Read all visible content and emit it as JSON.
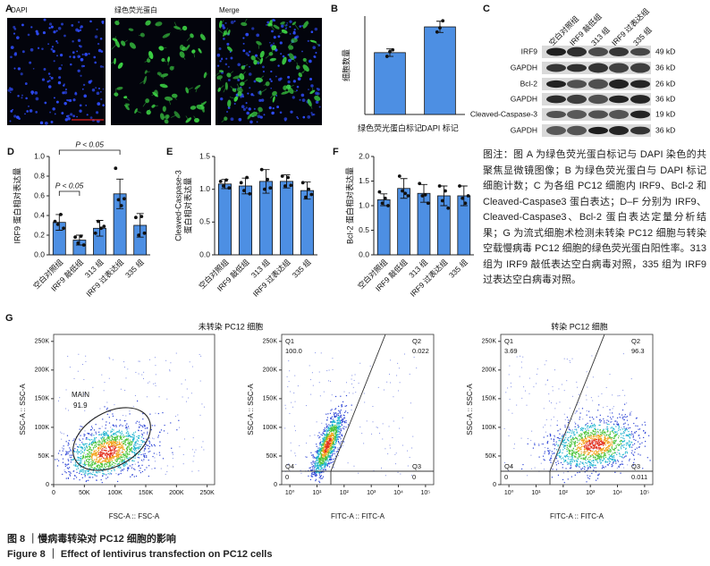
{
  "images": {
    "label": "A",
    "panels": [
      "DAPI",
      "绿色荧光蛋白",
      "Merge"
    ]
  },
  "blot": {
    "label": "C",
    "groups": [
      "空白对照组",
      "IRF9 敲低组",
      "313 组",
      "IRF9 过表达组",
      "335 组"
    ],
    "rows": [
      {
        "name": "IRF9",
        "size": "49 kD"
      },
      {
        "name": "GAPDH",
        "size": "36 kD"
      },
      {
        "name": "Bcl-2",
        "size": "26 kD"
      },
      {
        "name": "GAPDH",
        "size": "36 kD"
      },
      {
        "name": "Cleaved-Caspase-3",
        "size": "19 kD"
      },
      {
        "name": "GAPDH",
        "size": "36 kD"
      }
    ]
  },
  "chart_data": [
    {
      "type": "bar",
      "label": "B",
      "ylabel": [
        "细胞数量"
      ],
      "categories": [
        "绿色荧光蛋白标记",
        "DAPI 标记"
      ],
      "values": [
        132,
        187
      ],
      "errors": [
        8,
        12
      ],
      "points": [
        [
          124,
          134,
          138
        ],
        [
          176,
          185,
          200
        ]
      ],
      "color": "#4d8fe3",
      "ylim": [
        0,
        210
      ]
    },
    {
      "type": "bar",
      "label": "D",
      "ylabel": [
        "IRF9 蛋白相对表达量"
      ],
      "categories": [
        "空白对照组",
        "IRF9 敲低组",
        "313 组",
        "IRF9 过表达组",
        "335 组"
      ],
      "values": [
        0.33,
        0.15,
        0.27,
        0.62,
        0.3
      ],
      "errors": [
        0.08,
        0.05,
        0.08,
        0.15,
        0.12
      ],
      "points": [
        [
          0.34,
          0.31,
          0.41,
          0.27
        ],
        [
          0.18,
          0.12,
          0.19,
          0.1
        ],
        [
          0.22,
          0.34,
          0.27,
          0.29
        ],
        [
          0.88,
          0.56,
          0.5,
          0.57
        ],
        [
          0.38,
          0.2,
          0.39,
          0.22
        ]
      ],
      "color": "#4d8fe3",
      "ylim": [
        0,
        1.0
      ],
      "yticks": [
        {
          "value": 0,
          "label": "0.0"
        },
        {
          "value": 0.2,
          "label": "0.2"
        },
        {
          "value": 0.4,
          "label": "0.4"
        },
        {
          "value": 0.6,
          "label": "0.6"
        },
        {
          "value": 0.8,
          "label": "0.8"
        },
        {
          "value": 1.0,
          "label": "1.0"
        }
      ],
      "annotations": [
        "P < 0.05",
        "P < 0.05"
      ]
    },
    {
      "type": "bar",
      "label": "E",
      "ylabel": [
        "Cleaved-Caspase-3",
        "蛋白相对表达量"
      ],
      "categories": [
        "空白对照组",
        "IRF9 敲低组",
        "313 组",
        "IRF9 过表达组",
        "335 组"
      ],
      "values": [
        1.08,
        1.05,
        1.12,
        1.12,
        0.98
      ],
      "errors": [
        0.07,
        0.12,
        0.18,
        0.1,
        0.13
      ],
      "points": [
        [
          1.12,
          1.05,
          1.14,
          1.02
        ],
        [
          1.1,
          0.98,
          1.18,
          0.93
        ],
        [
          1.3,
          1.0,
          1.15,
          1.02
        ],
        [
          1.2,
          1.05,
          1.18,
          1.06
        ],
        [
          1.1,
          0.88,
          1.0,
          0.92
        ]
      ],
      "color": "#4d8fe3",
      "ylim": [
        0,
        1.5
      ],
      "yticks": [
        {
          "value": 0,
          "label": "0.0"
        },
        {
          "value": 0.5,
          "label": "0.5"
        },
        {
          "value": 1.0,
          "label": "1.0"
        },
        {
          "value": 1.5,
          "label": "1.5"
        }
      ]
    },
    {
      "type": "bar",
      "label": "F",
      "ylabel": [
        "Bcl-2 蛋白相对表达量"
      ],
      "categories": [
        "空白对照组",
        "IRF9 敲低组",
        "313 组",
        "IRF9 过表达组",
        "335 组"
      ],
      "values": [
        1.12,
        1.35,
        1.25,
        1.2,
        1.2
      ],
      "errors": [
        0.12,
        0.2,
        0.18,
        0.2,
        0.2
      ],
      "points": [
        [
          1.28,
          1.05,
          1.15,
          1.0
        ],
        [
          1.6,
          1.3,
          1.25,
          1.2
        ],
        [
          1.45,
          1.2,
          1.22,
          1.05
        ],
        [
          1.4,
          1.1,
          1.3,
          0.95
        ],
        [
          1.4,
          1.15,
          1.05,
          1.2
        ]
      ],
      "color": "#4d8fe3",
      "ylim": [
        0,
        2.0
      ],
      "yticks": [
        {
          "value": 0,
          "label": "0.0"
        },
        {
          "value": 0.5,
          "label": "0.5"
        },
        {
          "value": 1.0,
          "label": "1.0"
        },
        {
          "value": 1.5,
          "label": "1.5"
        },
        {
          "value": 2.0,
          "label": "2.0"
        }
      ]
    }
  ],
  "flow": {
    "label": "G",
    "titles": [
      "未转染 PC12 细胞",
      "转染 PC12 细胞"
    ],
    "plots": [
      {
        "xlabel": "FSC-A :: FSC-A",
        "ylabel": "SSC-A :: SSC-A",
        "log_x": false,
        "xlim": [
          0,
          262144
        ],
        "ylim": [
          0,
          262144
        ],
        "xticks": [
          0,
          {
            "value": 50000,
            "label": "50K"
          },
          {
            "value": 100000,
            "label": "100K"
          },
          {
            "value": 150000,
            "label": "150K"
          },
          {
            "value": 200000,
            "label": "200K"
          },
          {
            "value": 250000,
            "label": "250K"
          }
        ],
        "yticks": [
          0,
          {
            "value": 50000,
            "label": "50K"
          },
          {
            "value": 100000,
            "label": "100K"
          },
          {
            "value": 150000,
            "label": "150K"
          },
          {
            "value": 200000,
            "label": "200K"
          },
          {
            "value": 250000,
            "label": "250K"
          }
        ],
        "gate": {
          "name": "MAIN",
          "value": "91.9"
        }
      },
      {
        "xlabel": "FITC-A :: FITC-A",
        "ylabel": "SSC-A :: SSC-A",
        "log_x": true,
        "xlim": [
          0.5,
          200000
        ],
        "ylim": [
          0,
          262144
        ],
        "xticks": [
          {
            "value": 1,
            "label": "10⁰"
          },
          {
            "value": 10,
            "label": "10¹"
          },
          {
            "value": 100,
            "label": "10²"
          },
          {
            "value": 1000,
            "label": "10³"
          },
          {
            "value": 10000,
            "label": "10⁴"
          },
          {
            "value": 100000,
            "label": "10⁵"
          }
        ],
        "yticks": [
          0,
          {
            "value": 50000,
            "label": "50K"
          },
          {
            "value": 100000,
            "label": "100K"
          },
          {
            "value": 150000,
            "label": "150K"
          },
          {
            "value": 200000,
            "label": "200K"
          },
          {
            "value": 250000,
            "label": "250K"
          }
        ],
        "quadrants": [
          {
            "name": "Q1",
            "value": "100.0"
          },
          {
            "name": "Q2",
            "value": "0.022"
          },
          {
            "name": "Q4",
            "value": "0"
          },
          {
            "name": "Q3",
            "value": "0"
          }
        ]
      },
      {
        "xlabel": "FITC-A :: FITC-A",
        "ylabel": "SSC-A :: SSC-A",
        "log_x": true,
        "xlim": [
          0.5,
          200000
        ],
        "ylim": [
          0,
          262144
        ],
        "xticks": [
          {
            "value": 1,
            "label": "10⁰"
          },
          {
            "value": 10,
            "label": "10¹"
          },
          {
            "value": 100,
            "label": "10²"
          },
          {
            "value": 1000,
            "label": "10³"
          },
          {
            "value": 10000,
            "label": "10⁴"
          },
          {
            "value": 100000,
            "label": "10⁵"
          }
        ],
        "yticks": [
          0,
          {
            "value": 50000,
            "label": "50K"
          },
          {
            "value": 100000,
            "label": "100K"
          },
          {
            "value": 150000,
            "label": "150K"
          },
          {
            "value": 200000,
            "label": "200K"
          },
          {
            "value": 250000,
            "label": "250K"
          }
        ],
        "quadrants": [
          {
            "name": "Q1",
            "value": "3.69"
          },
          {
            "name": "Q2",
            "value": "96.3"
          },
          {
            "name": "Q4",
            "value": "0"
          },
          {
            "name": "Q3",
            "value": "0.011"
          }
        ]
      }
    ]
  },
  "caption": {
    "note": "图注：图 A 为绿色荧光蛋白标记与 DAPI 染色的共聚焦显微镜图像；B 为绿色荧光蛋白与 DAPI 标记细胞计数；C 为各组 PC12 细胞内 IRF9、Bcl-2 和 Cleaved-Caspase3 蛋白表达；D–F 分别为 IRF9、Cleaved-Caspase3、Bcl-2 蛋白表达定量分析结果；G 为流式细胞术检测未转染 PC12 细胞与转染空载慢病毒 PC12 细胞的绿色荧光蛋白阳性率。313 组为 IRF9 敲低表达空白病毒对照，335 组为 IRF9 过表达空白病毒对照。",
    "zh": "图 8 ｜慢病毒转染对 PC12 细胞的影响",
    "en": "Figure 8 ｜ Effect of lentivirus transfection on PC12 cells"
  }
}
